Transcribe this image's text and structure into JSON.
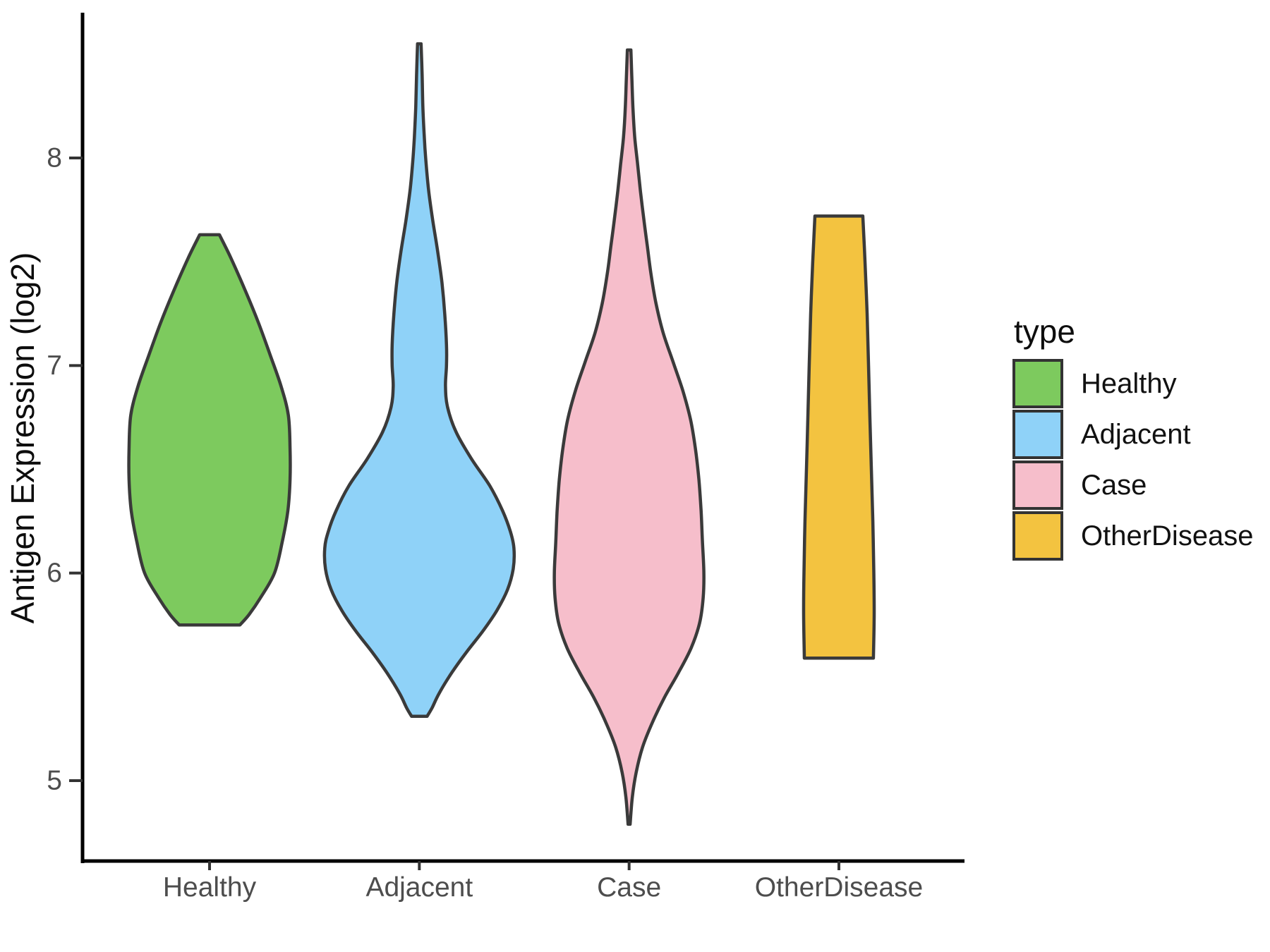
{
  "figure": {
    "background": "#ffffff",
    "axis_line_color": "#000000",
    "tick_color": "#333333",
    "violin_stroke_color": "#3a3a3a",
    "y_axis": {
      "title": "Antigen Expression (log2)",
      "ticks": [
        8,
        7,
        6,
        5
      ],
      "tick_labels": [
        "8",
        "7",
        "6",
        "5"
      ]
    },
    "x_axis": {
      "categories": [
        "Healthy",
        "Adjacent",
        "Case",
        "OtherDisease"
      ]
    },
    "legend": {
      "title": "type",
      "entries": [
        {
          "label": "Healthy",
          "color": "#7dca5e"
        },
        {
          "label": "Adjacent",
          "color": "#8fd2f8"
        },
        {
          "label": "Case",
          "color": "#f6becb"
        },
        {
          "label": "OtherDisease",
          "color": "#f3c340"
        }
      ]
    }
  },
  "chart_data": {
    "type": "violin",
    "title": "",
    "xlabel": "",
    "ylabel": "Antigen Expression (log2)",
    "ylim": [
      4.6,
      8.7
    ],
    "y_ticks": [
      5,
      6,
      7,
      8
    ],
    "grid": false,
    "legend_position": "right",
    "legend_title": "type",
    "categories": [
      "Healthy",
      "Adjacent",
      "Case",
      "OtherDisease"
    ],
    "series": [
      {
        "name": "Healthy",
        "fill": "#7dca5e",
        "trim_range": [
          5.75,
          7.63
        ],
        "peak_value": 6.7,
        "profile": [
          [
            7.63,
            0.095
          ],
          [
            7.52,
            0.204
          ],
          [
            7.35,
            0.354
          ],
          [
            7.2,
            0.476
          ],
          [
            7.05,
            0.585
          ],
          [
            6.9,
            0.69
          ],
          [
            6.76,
            0.76
          ],
          [
            6.6,
            0.776
          ],
          [
            6.45,
            0.776
          ],
          [
            6.3,
            0.755
          ],
          [
            6.15,
            0.701
          ],
          [
            6.0,
            0.626
          ],
          [
            5.88,
            0.49
          ],
          [
            5.8,
            0.381
          ],
          [
            5.75,
            0.293
          ]
        ]
      },
      {
        "name": "Adjacent",
        "fill": "#8fd2f8",
        "trim_range": [
          5.31,
          8.55
        ],
        "peak_value": 6.12,
        "profile": [
          [
            8.55,
            0.017
          ],
          [
            8.4,
            0.027
          ],
          [
            8.25,
            0.034
          ],
          [
            8.1,
            0.048
          ],
          [
            8.0,
            0.061
          ],
          [
            7.85,
            0.088
          ],
          [
            7.7,
            0.129
          ],
          [
            7.55,
            0.177
          ],
          [
            7.4,
            0.218
          ],
          [
            7.25,
            0.245
          ],
          [
            7.1,
            0.262
          ],
          [
            7.0,
            0.262
          ],
          [
            6.9,
            0.252
          ],
          [
            6.8,
            0.272
          ],
          [
            6.68,
            0.354
          ],
          [
            6.55,
            0.503
          ],
          [
            6.42,
            0.68
          ],
          [
            6.3,
            0.803
          ],
          [
            6.2,
            0.878
          ],
          [
            6.12,
            0.912
          ],
          [
            6.02,
            0.905
          ],
          [
            5.92,
            0.85
          ],
          [
            5.82,
            0.748
          ],
          [
            5.72,
            0.612
          ],
          [
            5.62,
            0.456
          ],
          [
            5.52,
            0.313
          ],
          [
            5.42,
            0.19
          ],
          [
            5.35,
            0.122
          ],
          [
            5.31,
            0.075
          ]
        ]
      },
      {
        "name": "Case",
        "fill": "#f6becb",
        "trim_range": [
          4.79,
          8.52
        ],
        "peak_value": 5.96,
        "profile": [
          [
            8.52,
            0.017
          ],
          [
            8.38,
            0.027
          ],
          [
            8.24,
            0.037
          ],
          [
            8.1,
            0.054
          ],
          [
            7.97,
            0.082
          ],
          [
            7.84,
            0.109
          ],
          [
            7.7,
            0.143
          ],
          [
            7.57,
            0.177
          ],
          [
            7.44,
            0.211
          ],
          [
            7.3,
            0.259
          ],
          [
            7.16,
            0.327
          ],
          [
            7.02,
            0.422
          ],
          [
            6.88,
            0.517
          ],
          [
            6.74,
            0.592
          ],
          [
            6.6,
            0.639
          ],
          [
            6.45,
            0.673
          ],
          [
            6.3,
            0.694
          ],
          [
            6.15,
            0.707
          ],
          [
            6.0,
            0.721
          ],
          [
            5.88,
            0.714
          ],
          [
            5.76,
            0.68
          ],
          [
            5.64,
            0.599
          ],
          [
            5.52,
            0.476
          ],
          [
            5.4,
            0.34
          ],
          [
            5.28,
            0.224
          ],
          [
            5.16,
            0.129
          ],
          [
            5.04,
            0.068
          ],
          [
            4.92,
            0.031
          ],
          [
            4.79,
            0.01
          ]
        ]
      },
      {
        "name": "OtherDisease",
        "fill": "#f3c340",
        "trim_range": [
          5.59,
          7.72
        ],
        "peak_value": 5.8,
        "profile": [
          [
            7.72,
            0.231
          ],
          [
            7.5,
            0.252
          ],
          [
            7.25,
            0.272
          ],
          [
            7.0,
            0.286
          ],
          [
            6.75,
            0.299
          ],
          [
            6.5,
            0.313
          ],
          [
            6.25,
            0.327
          ],
          [
            6.0,
            0.337
          ],
          [
            5.8,
            0.34
          ],
          [
            5.59,
            0.333
          ]
        ]
      }
    ]
  }
}
